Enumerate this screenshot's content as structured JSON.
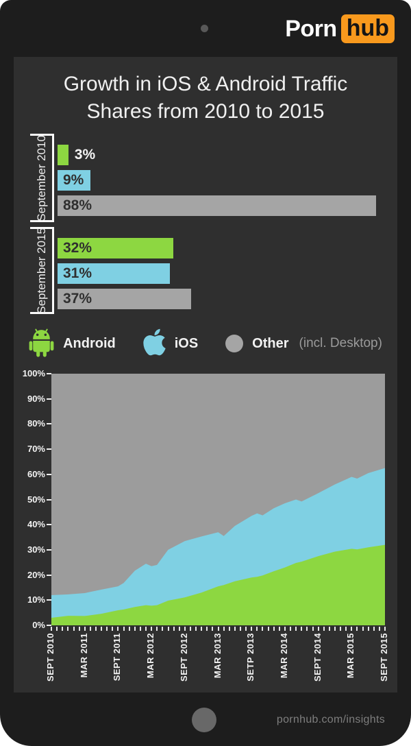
{
  "logo": {
    "text_primary": "Porn",
    "text_badge": "hub"
  },
  "title": {
    "line1": "Growth in iOS & Android Traffic",
    "line2": "Shares from 2010 to 2015"
  },
  "legend": {
    "items": [
      {
        "icon": "android-robot-icon",
        "label": "Android"
      },
      {
        "icon": "apple-icon",
        "label": "iOS"
      },
      {
        "icon": "gray-circle-icon",
        "label": "Other",
        "sublabel": "(incl. Desktop)"
      }
    ]
  },
  "footer": {
    "url": "pornhub.com/insights"
  },
  "colors": {
    "android_green": "#8dd741",
    "ios_blue": "#7fd0e3",
    "other_gray": "#a5a5a5",
    "plot_gray": "#9c9c9c",
    "brand_orange": "#f8991d",
    "screen_bg": "#2f2f2f",
    "frame_bg": "#1d1d1d",
    "light_text": "#f2f2f2",
    "muted_text": "#9b9b9b"
  },
  "chart_data": [
    {
      "type": "bar",
      "orientation": "horizontal",
      "value_format": "percent",
      "series_colors": {
        "android": "#8dd741",
        "ios": "#7fd0e3",
        "other": "#a5a5a5"
      },
      "groups": [
        {
          "label": "September 2010",
          "bars": [
            {
              "series": "android",
              "value": 3,
              "label": "3%"
            },
            {
              "series": "ios",
              "value": 9,
              "label": "9%"
            },
            {
              "series": "other",
              "value": 88,
              "label": "88%"
            }
          ]
        },
        {
          "label": "September 2015",
          "bars": [
            {
              "series": "android",
              "value": 32,
              "label": "32%"
            },
            {
              "series": "ios",
              "value": 31,
              "label": "31%"
            },
            {
              "series": "other",
              "value": 37,
              "label": "37%"
            }
          ]
        }
      ]
    },
    {
      "type": "area",
      "stacked": true,
      "title": "iOS & Android traffic share, monthly, Sept 2010 - Sept 2015",
      "ylim": [
        0,
        100
      ],
      "grid": false,
      "y_tick_labels": [
        "0%",
        "10%",
        "20%",
        "30%",
        "40%",
        "50%",
        "60%",
        "70%",
        "80%",
        "90%",
        "100%"
      ],
      "x_tick_labels": [
        "SEPT 2010",
        "MAR 2011",
        "SEPT 2011",
        "MAR 2012",
        "SEPT 2012",
        "MAR 2013",
        "SETP 2013",
        "MAR 2014",
        "SEPT 2014",
        "MAR 2015",
        "SEPT 2015"
      ],
      "x_label_interval_months": 6,
      "x_minor_tick_interval_months": 1,
      "months_span": 60,
      "series_names": [
        "Android",
        "iOS",
        "Other (incl. Desktop) fills remainder to 100%"
      ],
      "point_format": "[month_index_from_sept2010, android_pct, android_plus_ios_pct]",
      "points": [
        [
          0,
          3.0,
          12.0
        ],
        [
          3,
          3.8,
          12.3
        ],
        [
          6,
          3.7,
          12.8
        ],
        [
          9,
          4.6,
          14.2
        ],
        [
          12,
          6.0,
          15.5
        ],
        [
          13,
          6.3,
          16.8
        ],
        [
          15,
          7.3,
          21.7
        ],
        [
          17,
          8.0,
          24.5
        ],
        [
          18,
          7.8,
          23.5
        ],
        [
          19,
          8.0,
          24.0
        ],
        [
          21,
          9.8,
          30.0
        ],
        [
          24,
          11.1,
          33.5
        ],
        [
          27,
          13.0,
          35.3
        ],
        [
          30,
          15.5,
          37.0
        ],
        [
          31,
          16.0,
          35.5
        ],
        [
          33,
          17.5,
          39.5
        ],
        [
          36,
          19.0,
          43.5
        ],
        [
          37,
          19.3,
          44.5
        ],
        [
          38,
          19.8,
          43.7
        ],
        [
          40,
          21.5,
          46.5
        ],
        [
          42,
          23.0,
          48.5
        ],
        [
          44,
          24.8,
          50.0
        ],
        [
          45,
          25.3,
          49.2
        ],
        [
          48,
          27.5,
          52.5
        ],
        [
          51,
          29.3,
          56.0
        ],
        [
          54,
          30.4,
          59.0
        ],
        [
          55,
          30.2,
          58.3
        ],
        [
          57,
          31.0,
          60.5
        ],
        [
          60,
          32.0,
          62.5
        ]
      ]
    }
  ]
}
